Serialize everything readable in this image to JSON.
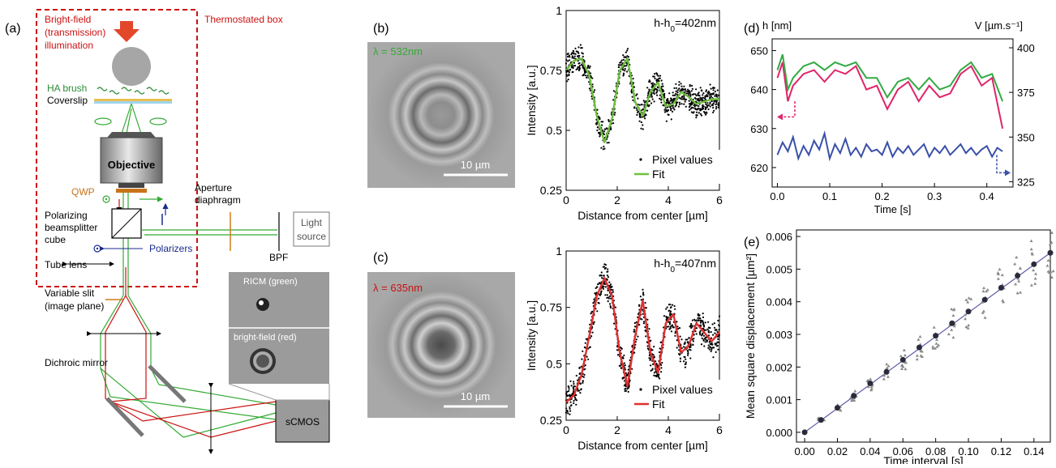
{
  "panels": {
    "a": {
      "tag": "(a)",
      "illumination": [
        "Bright-field",
        "(transmission)",
        "illumination"
      ],
      "box_title": "Thermostated box",
      "brush": "HA brush",
      "coverslip": "Coverslip",
      "objective": "Objective",
      "qwp": "QWP",
      "aperture": [
        "Aperture",
        "diaphragm"
      ],
      "pbs": [
        "Polarizing",
        "beamsplitter",
        "cube"
      ],
      "polarizers": "Polarizers",
      "light_source": [
        "Light",
        "source"
      ],
      "bpf": "BPF",
      "tube_lens": "Tube lens",
      "slit": [
        "Variable slit",
        "(image plane)"
      ],
      "dichroic": "Dichroic mirror",
      "camera": "sCMOS",
      "inset_top": "RICM (green)",
      "inset_bottom": "bright-field (red)"
    },
    "b": {
      "tag": "(b)",
      "lambda": "λ = 532nm",
      "scalebar": "10 µm"
    },
    "c": {
      "tag": "(c)",
      "lambda": "λ = 635nm",
      "scalebar": "10 µm"
    },
    "d": {
      "tag": "(d)"
    },
    "e": {
      "tag": "(e)"
    }
  },
  "colors": {
    "red": "#cc1111",
    "green": "#33aa33",
    "magenta": "#e0246a",
    "blue": "#3a4fa0",
    "orange": "#d07a1a",
    "darkblue": "#1a2a8c"
  },
  "chart_data": [
    {
      "id": "b-profile",
      "type": "scatter",
      "annotation": "h-h0=402nm",
      "xlabel": "Distance from center [µm]",
      "ylabel": "Intensity [a.u.]",
      "xlim": [
        0,
        6
      ],
      "ylim": [
        0.25,
        1.0
      ],
      "xticks": [
        0,
        2,
        4,
        6
      ],
      "yticks": [
        0.25,
        0.5,
        0.75,
        1
      ],
      "legend": [
        "Pixel values",
        "Fit"
      ],
      "legend_position": "bottom-right",
      "fit_color": "#6fbf3f",
      "fit": {
        "x": [
          0,
          0.3,
          0.6,
          0.9,
          1.2,
          1.5,
          1.8,
          2.1,
          2.4,
          2.7,
          3.0,
          3.3,
          3.6,
          3.9,
          4.2,
          4.5,
          4.8,
          5.1,
          5.4,
          5.7,
          6.0
        ],
        "y": [
          0.75,
          0.79,
          0.8,
          0.73,
          0.56,
          0.45,
          0.55,
          0.75,
          0.8,
          0.62,
          0.56,
          0.66,
          0.7,
          0.6,
          0.61,
          0.66,
          0.64,
          0.61,
          0.62,
          0.63,
          0.63
        ]
      },
      "scatter_spread": 0.05
    },
    {
      "id": "c-profile",
      "type": "scatter",
      "annotation": "h-h0=407nm",
      "xlabel": "Distance from center [µm]",
      "ylabel": "Intensity [a.u.]",
      "xlim": [
        0,
        6
      ],
      "ylim": [
        0.25,
        1.0
      ],
      "xticks": [
        0,
        2,
        4,
        6
      ],
      "yticks": [
        0.25,
        0.5,
        0.75,
        1
      ],
      "legend": [
        "Pixel values",
        "Fit"
      ],
      "legend_position": "bottom-right",
      "fit_color": "#e03030",
      "fit": {
        "x": [
          0,
          0.3,
          0.6,
          0.9,
          1.2,
          1.5,
          1.8,
          2.1,
          2.4,
          2.7,
          3.0,
          3.3,
          3.6,
          3.9,
          4.2,
          4.5,
          4.8,
          5.1,
          5.4,
          5.7,
          6.0
        ],
        "y": [
          0.33,
          0.36,
          0.45,
          0.62,
          0.8,
          0.88,
          0.8,
          0.55,
          0.4,
          0.62,
          0.78,
          0.55,
          0.46,
          0.68,
          0.72,
          0.55,
          0.58,
          0.68,
          0.64,
          0.6,
          0.64
        ]
      },
      "scatter_spread": 0.06
    },
    {
      "id": "d-timeseries",
      "type": "line",
      "xlabel": "Time [s]",
      "ylabel": "h [nm]",
      "ylabel_right": "V [µm.s⁻¹]",
      "xlim": [
        -0.01,
        0.45
      ],
      "ylim": [
        615,
        653
      ],
      "ylim_right": [
        322,
        405
      ],
      "xticks": [
        0.0,
        0.1,
        0.2,
        0.3,
        0.4
      ],
      "yticks": [
        620,
        630,
        640,
        650
      ],
      "yticks_right": [
        325,
        350,
        375,
        400
      ],
      "series": [
        {
          "axis": "left",
          "color": "#e0246a",
          "x": [
            0.0,
            0.01,
            0.02,
            0.03,
            0.05,
            0.07,
            0.09,
            0.11,
            0.13,
            0.15,
            0.17,
            0.19,
            0.21,
            0.23,
            0.25,
            0.27,
            0.29,
            0.31,
            0.33,
            0.35,
            0.37,
            0.39,
            0.41,
            0.43
          ],
          "y": [
            643,
            647,
            637,
            641,
            644,
            645,
            642,
            645,
            644,
            646,
            640,
            641,
            635,
            640,
            642,
            637,
            641,
            638,
            639,
            644,
            646,
            641,
            643,
            630
          ]
        },
        {
          "axis": "left",
          "color": "#33aa44",
          "x": [
            0.0,
            0.01,
            0.02,
            0.03,
            0.05,
            0.07,
            0.09,
            0.11,
            0.13,
            0.15,
            0.17,
            0.19,
            0.21,
            0.23,
            0.25,
            0.27,
            0.29,
            0.31,
            0.33,
            0.35,
            0.37,
            0.39,
            0.41,
            0.43
          ],
          "y": [
            645,
            649,
            640,
            643,
            646,
            647,
            645,
            647,
            646,
            647,
            643,
            643,
            638,
            642,
            643,
            640,
            643,
            640,
            641,
            645,
            647,
            643,
            644,
            637
          ]
        },
        {
          "axis": "right",
          "color": "#3a50a8",
          "x": [
            0.0,
            0.01,
            0.02,
            0.03,
            0.04,
            0.05,
            0.06,
            0.07,
            0.08,
            0.09,
            0.1,
            0.11,
            0.12,
            0.13,
            0.14,
            0.15,
            0.16,
            0.17,
            0.18,
            0.19,
            0.2,
            0.21,
            0.22,
            0.23,
            0.24,
            0.25,
            0.26,
            0.27,
            0.28,
            0.29,
            0.3,
            0.31,
            0.32,
            0.33,
            0.34,
            0.35,
            0.36,
            0.37,
            0.38,
            0.39,
            0.4,
            0.41,
            0.42,
            0.43
          ],
          "y": [
            340,
            347,
            342,
            350,
            338,
            345,
            340,
            348,
            343,
            352,
            338,
            346,
            341,
            349,
            340,
            344,
            339,
            346,
            342,
            343,
            340,
            347,
            339,
            344,
            341,
            345,
            340,
            343,
            346,
            339,
            344,
            341,
            345,
            340,
            343,
            346,
            341,
            344,
            340,
            343,
            345,
            339,
            344,
            342
          ]
        }
      ]
    },
    {
      "id": "e-msd",
      "type": "scatter",
      "xlabel": "Time interval [s]",
      "ylabel": "Mean square displacement [µm²]",
      "xlim": [
        -0.005,
        0.15
      ],
      "ylim": [
        -0.0003,
        0.0062
      ],
      "xticks": [
        0.0,
        0.02,
        0.04,
        0.06,
        0.08,
        0.1,
        0.12,
        0.14
      ],
      "yticks": [
        0.0,
        0.001,
        0.002,
        0.003,
        0.004,
        0.005,
        0.006
      ],
      "x": [
        0.0,
        0.01,
        0.02,
        0.03,
        0.04,
        0.05,
        0.06,
        0.07,
        0.08,
        0.09,
        0.1,
        0.11,
        0.12,
        0.13,
        0.14,
        0.15
      ],
      "y": [
        0.0,
        0.00038,
        0.00075,
        0.00112,
        0.0015,
        0.00185,
        0.00222,
        0.0026,
        0.00296,
        0.00334,
        0.0037,
        0.00406,
        0.00443,
        0.0048,
        0.00515,
        0.0055
      ],
      "fit_line": {
        "x": [
          0.0,
          0.15
        ],
        "y": [
          0.0,
          0.0055
        ]
      },
      "fit_color": "#5c5ca8"
    }
  ]
}
